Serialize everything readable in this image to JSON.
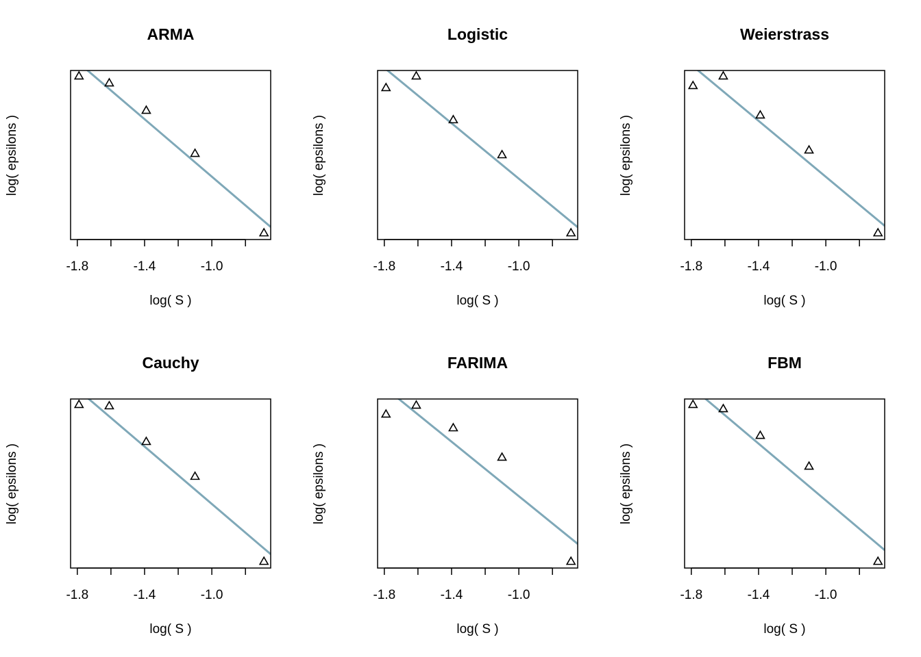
{
  "chart_data": [
    {
      "type": "scatter",
      "title": "ARMA",
      "xlabel": "log( S )",
      "ylabel": "log( epsilons )",
      "x": [
        -1.79,
        -1.61,
        -1.39,
        -1.1,
        -0.69
      ],
      "y": [
        0.968,
        0.927,
        0.765,
        0.51,
        0.04
      ],
      "xlim": [
        -1.84,
        -0.65
      ],
      "ylim": [
        0,
        1
      ],
      "xticks": [
        -1.8,
        -1.4,
        {
          "value": -1,
          "label": "-1.0"
        }
      ],
      "xminor_ticks": [
        -1.6,
        -1.2,
        -0.8
      ],
      "fit": {
        "slope": -0.85,
        "intercept": -0.478
      },
      "marker_color": "#000000",
      "line_color": "#7fa8b8"
    },
    {
      "type": "scatter",
      "title": "Logistic",
      "xlabel": "log( S )",
      "ylabel": "log( epsilons )",
      "x": [
        -1.79,
        -1.61,
        -1.39,
        -1.1,
        -0.69
      ],
      "y": [
        0.899,
        0.968,
        0.709,
        0.502,
        0.04
      ],
      "xlim": [
        -1.84,
        -0.65
      ],
      "ylim": [
        0,
        1
      ],
      "xticks": [
        -1.8,
        -1.4,
        {
          "value": -1,
          "label": "-1.0"
        }
      ],
      "xminor_ticks": [
        -1.6,
        -1.2,
        -0.8
      ],
      "fit": {
        "slope": -0.82,
        "intercept": -0.46
      },
      "marker_color": "#000000",
      "line_color": "#7fa8b8"
    },
    {
      "type": "scatter",
      "title": "Weierstrass",
      "xlabel": "log( S )",
      "ylabel": "log( epsilons )",
      "x": [
        -1.79,
        -1.61,
        -1.39,
        -1.1,
        -0.69
      ],
      "y": [
        0.911,
        0.968,
        0.737,
        0.53,
        0.04
      ],
      "xlim": [
        -1.84,
        -0.65
      ],
      "ylim": [
        0,
        1
      ],
      "xticks": [
        -1.8,
        -1.4,
        {
          "value": -1,
          "label": "-1.0"
        }
      ],
      "xminor_ticks": [
        -1.6,
        -1.2,
        -0.8
      ],
      "fit": {
        "slope": -0.828,
        "intercept": -0.457
      },
      "marker_color": "#000000",
      "line_color": "#7fa8b8"
    },
    {
      "type": "scatter",
      "title": "Cauchy",
      "xlabel": "log( S )",
      "ylabel": "log( epsilons )",
      "x": [
        -1.79,
        -1.61,
        -1.39,
        -1.1,
        -0.69
      ],
      "y": [
        0.968,
        0.96,
        0.749,
        0.543,
        0.04
      ],
      "xlim": [
        -1.84,
        -0.65
      ],
      "ylim": [
        0,
        1
      ],
      "xticks": [
        -1.8,
        -1.4,
        {
          "value": -1,
          "label": "-1.0"
        }
      ],
      "xminor_ticks": [
        -1.6,
        -1.2,
        -0.8
      ],
      "fit": {
        "slope": -0.849,
        "intercept": -0.47
      },
      "marker_color": "#000000",
      "line_color": "#7fa8b8"
    },
    {
      "type": "scatter",
      "title": "FARIMA",
      "xlabel": "log( S )",
      "ylabel": "log( epsilons )",
      "x": [
        -1.79,
        -1.61,
        -1.39,
        -1.1,
        -0.69
      ],
      "y": [
        0.911,
        0.964,
        0.83,
        0.656,
        0.04
      ],
      "xlim": [
        -1.84,
        -0.65
      ],
      "ylim": [
        0,
        1
      ],
      "xticks": [
        -1.8,
        -1.4,
        {
          "value": -1,
          "label": "-1.0"
        }
      ],
      "xminor_ticks": [
        -1.6,
        -1.2,
        -0.8
      ],
      "fit": {
        "slope": -0.806,
        "intercept": -0.381
      },
      "marker_color": "#000000",
      "line_color": "#7fa8b8"
    },
    {
      "type": "scatter",
      "title": "FBM",
      "xlabel": "log( S )",
      "ylabel": "log( epsilons )",
      "x": [
        -1.79,
        -1.61,
        -1.39,
        -1.1,
        -0.69
      ],
      "y": [
        0.968,
        0.943,
        0.785,
        0.603,
        0.04
      ],
      "xlim": [
        -1.84,
        -0.65
      ],
      "ylim": [
        0,
        1
      ],
      "xticks": [
        -1.8,
        -1.4,
        {
          "value": -1,
          "label": "-1.0"
        }
      ],
      "xminor_ticks": [
        -1.6,
        -1.2,
        -0.8
      ],
      "fit": {
        "slope": -0.84,
        "intercept": -0.44
      },
      "marker_color": "#000000",
      "line_color": "#7fa8b8"
    }
  ]
}
